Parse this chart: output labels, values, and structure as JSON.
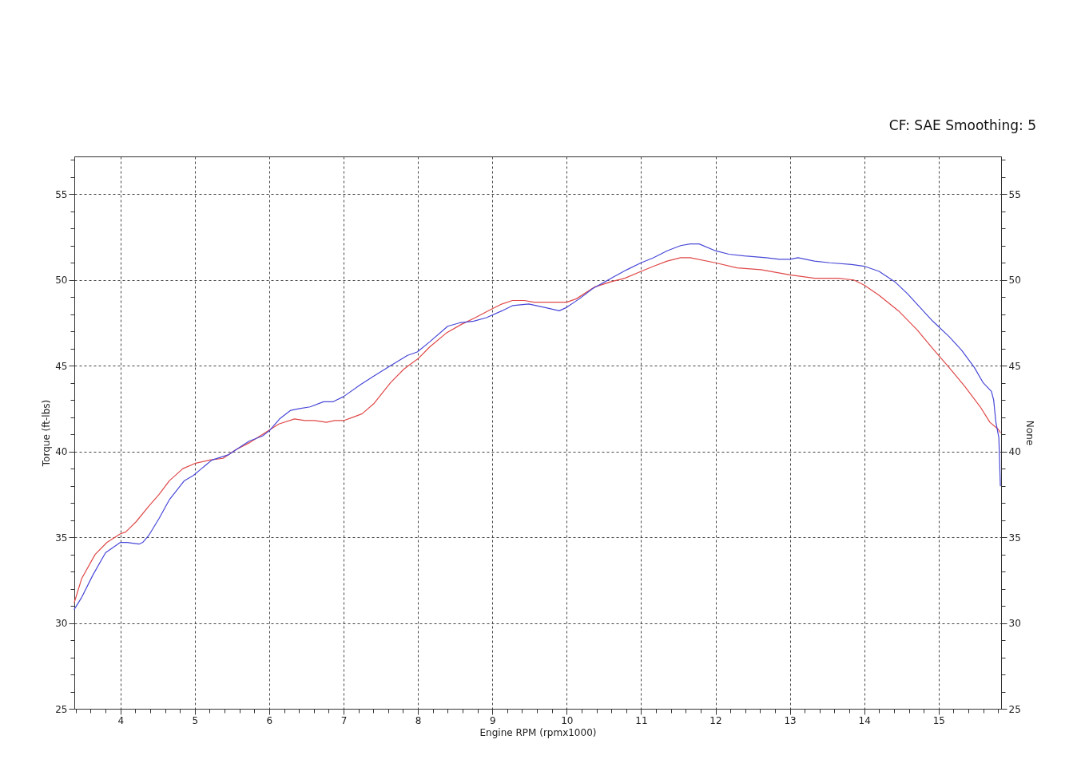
{
  "chart_data": {
    "type": "line",
    "xlabel": "Engine RPM (rpmx1000)",
    "ylabel": "Torque (ft-lbs)",
    "y2label": "None",
    "annotations": [
      "CF: SAE Smoothing: 5"
    ],
    "series": [
      {
        "color": "#e04848",
        "x": [
          3.38,
          3.48,
          3.66,
          3.82,
          4.0,
          4.07,
          4.21,
          4.38,
          4.52,
          4.66,
          4.84,
          5.0,
          5.2,
          5.38,
          5.55,
          5.73,
          5.91,
          6.13,
          6.34,
          6.48,
          6.61,
          6.77,
          6.88,
          7.0,
          7.13,
          7.25,
          7.41,
          7.63,
          7.81,
          8.0,
          8.16,
          8.38,
          8.58,
          8.77,
          8.99,
          9.13,
          9.27,
          9.43,
          9.56,
          9.65,
          9.77,
          10.0,
          10.13,
          10.38,
          10.6,
          10.78,
          11.0,
          11.17,
          11.35,
          11.53,
          11.66,
          12.0,
          12.29,
          12.61,
          13.0,
          13.33,
          13.65,
          13.86,
          14.0,
          14.2,
          14.46,
          14.71,
          14.92,
          15.14,
          15.35,
          15.56,
          15.69,
          15.8,
          15.83
        ],
        "values": [
          31.2,
          32.6,
          34.0,
          34.7,
          35.2,
          35.3,
          35.9,
          36.8,
          37.5,
          38.3,
          39.0,
          39.3,
          39.5,
          39.6,
          40.1,
          40.5,
          41.0,
          41.6,
          41.9,
          41.8,
          41.8,
          41.7,
          41.8,
          41.8,
          42.0,
          42.2,
          42.8,
          44.0,
          44.8,
          45.4,
          46.1,
          46.9,
          47.4,
          47.8,
          48.3,
          48.6,
          48.8,
          48.8,
          48.7,
          48.7,
          48.7,
          48.7,
          48.9,
          49.6,
          49.9,
          50.1,
          50.5,
          50.8,
          51.1,
          51.3,
          51.3,
          51.0,
          50.7,
          50.6,
          50.3,
          50.1,
          50.1,
          50.0,
          49.7,
          49.1,
          48.2,
          47.1,
          46.0,
          44.9,
          43.8,
          42.6,
          41.7,
          41.3,
          41.1
        ]
      },
      {
        "color": "#4848d8",
        "x": [
          3.38,
          3.48,
          3.63,
          3.8,
          4.0,
          4.09,
          4.25,
          4.3,
          4.38,
          4.52,
          4.66,
          4.86,
          4.98,
          5.09,
          5.23,
          5.45,
          5.59,
          5.73,
          5.91,
          6.0,
          6.14,
          6.29,
          6.41,
          6.55,
          6.73,
          6.86,
          7.0,
          7.23,
          7.41,
          7.63,
          7.86,
          7.99,
          8.16,
          8.4,
          8.56,
          8.75,
          8.92,
          9.13,
          9.27,
          9.49,
          9.7,
          9.9,
          10.0,
          10.17,
          10.35,
          10.6,
          10.81,
          11.0,
          11.17,
          11.35,
          11.53,
          11.66,
          11.78,
          12.0,
          12.18,
          12.39,
          12.68,
          12.86,
          13.0,
          13.11,
          13.33,
          13.54,
          13.83,
          14.0,
          14.2,
          14.41,
          14.58,
          14.75,
          14.92,
          15.14,
          15.31,
          15.48,
          15.6,
          15.71,
          15.74,
          15.77,
          15.81,
          15.83
        ],
        "values": [
          30.8,
          31.5,
          32.8,
          34.1,
          34.7,
          34.7,
          34.6,
          34.7,
          35.1,
          36.1,
          37.2,
          38.3,
          38.6,
          39.0,
          39.5,
          39.8,
          40.2,
          40.6,
          40.9,
          41.2,
          41.9,
          42.4,
          42.5,
          42.6,
          42.9,
          42.9,
          43.2,
          43.9,
          44.4,
          45.0,
          45.6,
          45.8,
          46.4,
          47.3,
          47.5,
          47.6,
          47.8,
          48.2,
          48.5,
          48.6,
          48.4,
          48.2,
          48.4,
          48.9,
          49.5,
          50.1,
          50.6,
          51.0,
          51.3,
          51.7,
          52.0,
          52.1,
          52.1,
          51.7,
          51.5,
          51.4,
          51.3,
          51.2,
          51.2,
          51.3,
          51.1,
          51.0,
          50.9,
          50.8,
          50.5,
          49.9,
          49.2,
          48.4,
          47.6,
          46.7,
          45.9,
          44.9,
          44.0,
          43.5,
          43.0,
          41.7,
          40.8,
          38.0
        ]
      }
    ],
    "xlim": [
      3.38,
      15.84
    ],
    "xticks": [
      {
        "value": 3.4,
        "label": null
      },
      {
        "value": 3.6,
        "label": null
      },
      {
        "value": 3.8,
        "label": null
      },
      4,
      {
        "value": 4.2,
        "label": null
      },
      {
        "value": 4.4,
        "label": null
      },
      {
        "value": 4.6,
        "label": null
      },
      {
        "value": 4.8,
        "label": null
      },
      5,
      {
        "value": 5.2,
        "label": null
      },
      {
        "value": 5.4,
        "label": null
      },
      {
        "value": 5.6,
        "label": null
      },
      {
        "value": 5.8,
        "label": null
      },
      6,
      {
        "value": 6.2,
        "label": null
      },
      {
        "value": 6.4,
        "label": null
      },
      {
        "value": 6.6,
        "label": null
      },
      {
        "value": 6.8,
        "label": null
      },
      7,
      {
        "value": 7.2,
        "label": null
      },
      {
        "value": 7.4,
        "label": null
      },
      {
        "value": 7.6,
        "label": null
      },
      {
        "value": 7.8,
        "label": null
      },
      8,
      {
        "value": 8.2,
        "label": null
      },
      {
        "value": 8.4,
        "label": null
      },
      {
        "value": 8.6,
        "label": null
      },
      {
        "value": 8.8,
        "label": null
      },
      9,
      {
        "value": 9.2,
        "label": null
      },
      {
        "value": 9.4,
        "label": null
      },
      {
        "value": 9.6,
        "label": null
      },
      {
        "value": 9.8,
        "label": null
      },
      10,
      {
        "value": 10.2,
        "label": null
      },
      {
        "value": 10.4,
        "label": null
      },
      {
        "value": 10.6,
        "label": null
      },
      {
        "value": 10.8,
        "label": null
      },
      11,
      {
        "value": 11.2,
        "label": null
      },
      {
        "value": 11.4,
        "label": null
      },
      {
        "value": 11.6,
        "label": null
      },
      {
        "value": 11.8,
        "label": null
      },
      12,
      {
        "value": 12.2,
        "label": null
      },
      {
        "value": 12.4,
        "label": null
      },
      {
        "value": 12.6,
        "label": null
      },
      {
        "value": 12.8,
        "label": null
      },
      13,
      {
        "value": 13.2,
        "label": null
      },
      {
        "value": 13.4,
        "label": null
      },
      {
        "value": 13.6,
        "label": null
      },
      {
        "value": 13.8,
        "label": null
      },
      14,
      {
        "value": 14.2,
        "label": null
      },
      {
        "value": 14.4,
        "label": null
      },
      {
        "value": 14.6,
        "label": null
      },
      {
        "value": 14.8,
        "label": null
      },
      15,
      {
        "value": 15.2,
        "label": null
      },
      {
        "value": 15.4,
        "label": null
      },
      {
        "value": 15.6,
        "label": null
      },
      {
        "value": 15.8,
        "label": null
      }
    ],
    "ylim": [
      25,
      57.2
    ],
    "yticks": [
      25,
      {
        "value": 26,
        "label": null
      },
      {
        "value": 27,
        "label": null
      },
      {
        "value": 28,
        "label": null
      },
      {
        "value": 29,
        "label": null
      },
      30,
      {
        "value": 31,
        "label": null
      },
      {
        "value": 32,
        "label": null
      },
      {
        "value": 33,
        "label": null
      },
      {
        "value": 34,
        "label": null
      },
      35,
      {
        "value": 36,
        "label": null
      },
      {
        "value": 37,
        "label": null
      },
      {
        "value": 38,
        "label": null
      },
      {
        "value": 39,
        "label": null
      },
      40,
      {
        "value": 41,
        "label": null
      },
      {
        "value": 42,
        "label": null
      },
      {
        "value": 43,
        "label": null
      },
      {
        "value": 44,
        "label": null
      },
      45,
      {
        "value": 46,
        "label": null
      },
      {
        "value": 47,
        "label": null
      },
      {
        "value": 48,
        "label": null
      },
      {
        "value": 49,
        "label": null
      },
      50,
      {
        "value": 51,
        "label": null
      },
      {
        "value": 52,
        "label": null
      },
      {
        "value": 53,
        "label": null
      },
      {
        "value": 54,
        "label": null
      },
      55,
      {
        "value": 56,
        "label": null
      },
      {
        "value": 57,
        "label": null
      }
    ],
    "y2lim": [
      25,
      57.2
    ],
    "y2ticks": [
      25,
      {
        "value": 26,
        "label": null
      },
      {
        "value": 27,
        "label": null
      },
      {
        "value": 28,
        "label": null
      },
      {
        "value": 29,
        "label": null
      },
      30,
      {
        "value": 31,
        "label": null
      },
      {
        "value": 32,
        "label": null
      },
      {
        "value": 33,
        "label": null
      },
      {
        "value": 34,
        "label": null
      },
      35,
      {
        "value": 36,
        "label": null
      },
      {
        "value": 37,
        "label": null
      },
      {
        "value": 38,
        "label": null
      },
      {
        "value": 39,
        "label": null
      },
      40,
      {
        "value": 41,
        "label": null
      },
      {
        "value": 42,
        "label": null
      },
      {
        "value": 43,
        "label": null
      },
      {
        "value": 44,
        "label": null
      },
      45,
      {
        "value": 46,
        "label": null
      },
      {
        "value": 47,
        "label": null
      },
      {
        "value": 48,
        "label": null
      },
      {
        "value": 49,
        "label": null
      },
      50,
      {
        "value": 51,
        "label": null
      },
      {
        "value": 52,
        "label": null
      },
      {
        "value": 53,
        "label": null
      },
      {
        "value": 54,
        "label": null
      },
      55,
      {
        "value": 56,
        "label": null
      },
      {
        "value": 57,
        "label": null
      }
    ],
    "grid": true,
    "line_style": "solid"
  }
}
